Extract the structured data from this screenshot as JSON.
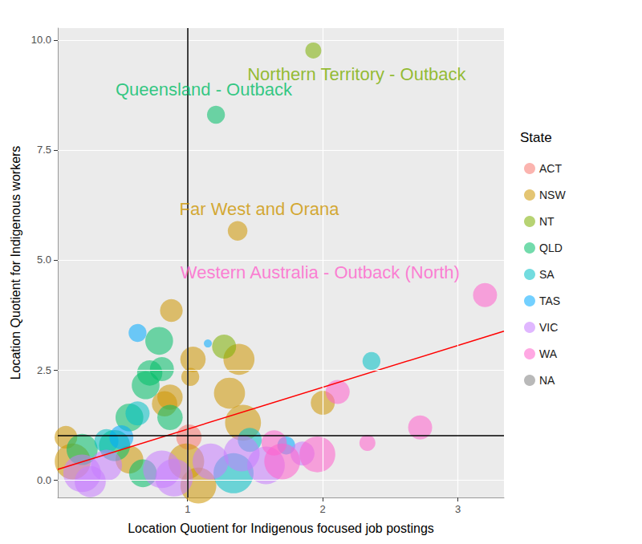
{
  "chart_data": {
    "type": "scatter",
    "x_label": "Location Quotient for Indigenous focused job postings",
    "y_label": "Location Quotient for Indigenous workers",
    "xlim": [
      0.04,
      3.34
    ],
    "xticks": [
      1,
      2,
      3
    ],
    "ylim": [
      -0.4,
      10.27
    ],
    "yticks": [
      {
        "value": 0,
        "label": "0.0"
      },
      {
        "value": 2.5,
        "label": "2.5"
      },
      {
        "value": 5,
        "label": "5.0"
      },
      {
        "value": 7.5,
        "label": "7.5"
      },
      {
        "value": 10,
        "label": "10.0"
      }
    ],
    "grid": true,
    "legend": "right",
    "legend_title": "State",
    "series": [
      {
        "name": "ACT",
        "color": "#F8766D",
        "x": [
          1.01
        ],
        "values": [
          0.97
        ],
        "sizes": [
          10
        ]
      },
      {
        "name": "NSW",
        "color": "#CD9600",
        "x": [
          1.37,
          0.88,
          1.38,
          1.04,
          1.02,
          2.0,
          1.41,
          1.31,
          0.1,
          0.15,
          0.57,
          0.83,
          0.87,
          0.99,
          1.08
        ],
        "values": [
          5.66,
          3.85,
          2.74,
          2.74,
          2.34,
          1.75,
          1.3,
          1.97,
          0.97,
          0.42,
          0.46,
          1.73,
          1.88,
          0.42,
          -0.13
        ],
        "sizes": [
          6,
          8,
          15,
          10,
          5,
          9,
          20,
          15,
          8,
          20,
          12,
          10,
          10,
          20,
          20
        ]
      },
      {
        "name": "NT",
        "color": "#7CAE00",
        "x": [
          1.93,
          1.27
        ],
        "values": [
          9.76,
          3.03
        ],
        "sizes": [
          4,
          9
        ]
      },
      {
        "name": "QLD",
        "color": "#00BE67",
        "x": [
          1.21,
          0.79,
          0.72,
          0.69,
          0.81,
          0.57,
          0.87,
          0.46,
          0.22,
          0.67
        ],
        "values": [
          8.3,
          3.16,
          2.43,
          2.15,
          2.52,
          1.42,
          1.42,
          0.78,
          0.69,
          0.15
        ],
        "sizes": [
          5,
          12,
          10,
          12,
          9,
          12,
          10,
          15,
          15,
          12
        ]
      },
      {
        "name": "SA",
        "color": "#00BFC4",
        "x": [
          2.36,
          1.34,
          1.46,
          0.63,
          0.4
        ],
        "values": [
          2.7,
          0.15,
          0.91,
          1.51,
          0.88
        ],
        "sizes": [
          5,
          25,
          9,
          9,
          9
        ]
      },
      {
        "name": "TAS",
        "color": "#00A9FF",
        "x": [
          0.63,
          1.15,
          1.73,
          0.51
        ],
        "values": [
          3.34,
          3.1,
          0.78,
          0.97
        ],
        "sizes": [
          5,
          1,
          5,
          9
        ]
      },
      {
        "name": "VIC",
        "color": "#C77CFF",
        "x": [
          0.22,
          0.4,
          0.81,
          0.9,
          1.17,
          1.58,
          1.85,
          1.4,
          0.28
        ],
        "values": [
          0.15,
          0.33,
          0.24,
          0.05,
          0.42,
          0.33,
          0.6,
          0.6,
          -0.04
        ],
        "sizes": [
          22,
          15,
          22,
          22,
          20,
          22,
          9,
          20,
          15
        ]
      },
      {
        "name": "WA",
        "color": "#FF61CC",
        "x": [
          3.2,
          2.11,
          2.72,
          2.33,
          1.96,
          1.7,
          1.64
        ],
        "values": [
          4.2,
          2.0,
          1.19,
          0.84,
          0.58,
          0.42,
          0.84
        ],
        "sizes": [
          9,
          9,
          9,
          4,
          20,
          20,
          10
        ]
      },
      {
        "name": "NA",
        "color": "#7F7F7F",
        "x": [],
        "values": [],
        "sizes": []
      }
    ],
    "trend_line": {
      "color": "#FF0000",
      "x": [
        0.04,
        3.34
      ],
      "values": [
        0.24,
        3.38
      ]
    },
    "reference_lines": {
      "color": "#000000",
      "x": [
        1
      ],
      "y": [
        1
      ]
    },
    "annotations": [
      {
        "text": "Northern Territory - Outback",
        "x": 2.25,
        "y": 9.23,
        "series": "NT"
      },
      {
        "text": "Queensland - Outback",
        "x": 1.12,
        "y": 8.87,
        "series": "QLD"
      },
      {
        "text": "Far West and Orana",
        "x": 1.53,
        "y": 6.15,
        "series": "NSW"
      },
      {
        "text": "Western Australia - Outback (North)",
        "x": 1.98,
        "y": 4.71,
        "series": "WA"
      }
    ]
  }
}
